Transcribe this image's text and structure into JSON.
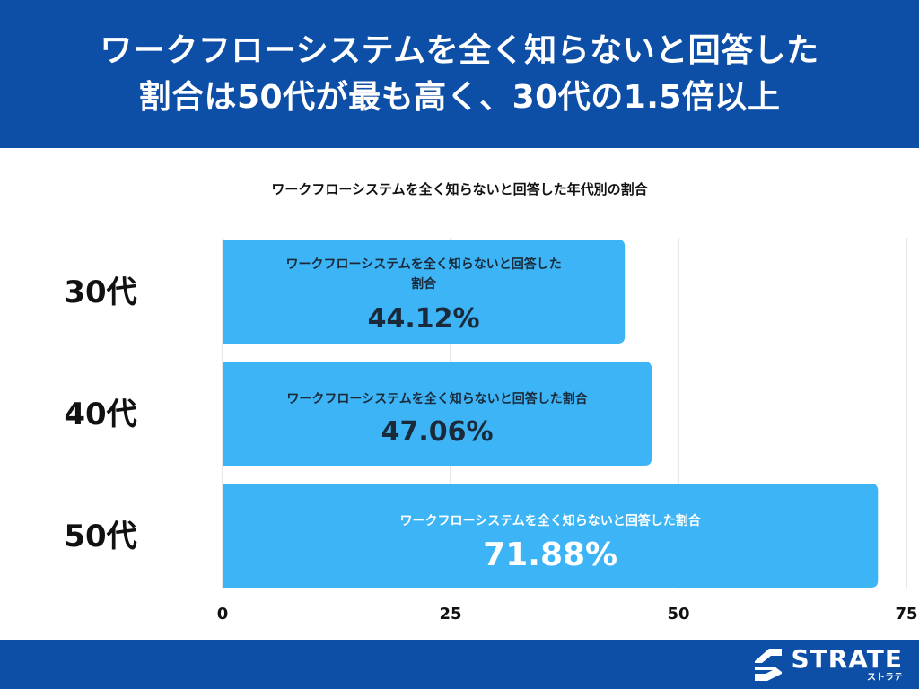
{
  "header": {
    "line1": "ワークフローシステムを全く知らないと回答した",
    "line2": "割合は50代が最も高く、30代の1.5倍以上"
  },
  "chart_data": {
    "type": "bar",
    "orientation": "horizontal",
    "title": "ワークフローシステムを全く知らないと回答した年代別の割合",
    "categories": [
      "30代",
      "40代",
      "50代"
    ],
    "series": [
      {
        "name": "ワークフローシステムを全く知らないと回答した割合",
        "values": [
          44.12,
          47.06,
          71.88
        ],
        "value_labels": [
          "44.12%",
          "47.06%",
          "71.88%"
        ],
        "bar_labels": [
          [
            "ワークフローシステムを全く知らないと回答した",
            "割合"
          ],
          [
            "ワークフローシステムを全く知らないと回答した割合"
          ],
          [
            "ワークフローシステムを全く知らないと回答した割合"
          ]
        ]
      }
    ],
    "xlim": [
      0,
      75
    ],
    "xticks": [
      0,
      25,
      50,
      75
    ],
    "xtick_labels": [
      "0",
      "25",
      "50",
      "75"
    ],
    "grid": true,
    "colors": {
      "bar": "#3db4f5",
      "grid": "#d0d0d0"
    }
  },
  "footer": {
    "brand": "STRATE",
    "brand_kana": "ストラテ",
    "logo_icon": "strate-s-logo-icon",
    "color": "#0d4ea6"
  }
}
